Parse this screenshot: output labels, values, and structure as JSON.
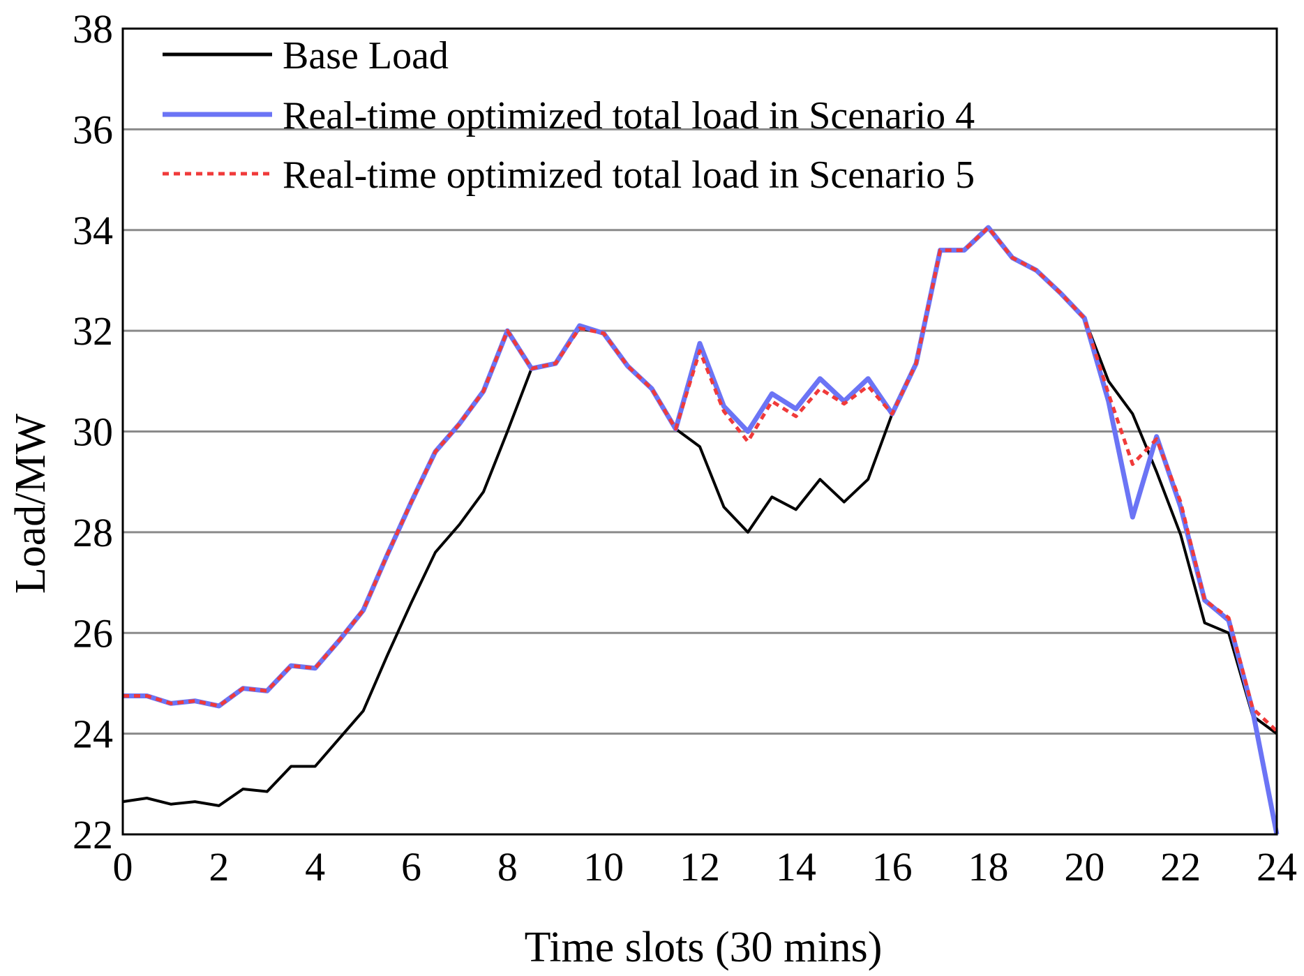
{
  "chart_data": {
    "type": "line",
    "title": "",
    "xlabel": "Time slots (30 mins)",
    "ylabel": "Load/MW",
    "xlim": [
      0,
      24
    ],
    "ylim": [
      22,
      38
    ],
    "xticks": [
      "0",
      "2",
      "4",
      "6",
      "8",
      "10",
      "12",
      "14",
      "16",
      "18",
      "20",
      "22",
      "24"
    ],
    "yticks": [
      "22",
      "24",
      "26",
      "28",
      "30",
      "32",
      "34",
      "36",
      "38"
    ],
    "grid": "horizontal",
    "legend_position": "top-left",
    "x": [
      0,
      0.5,
      1,
      1.5,
      2,
      2.5,
      3,
      3.5,
      4,
      4.5,
      5,
      5.5,
      6,
      6.5,
      7,
      7.5,
      8,
      8.5,
      9,
      9.5,
      10,
      10.5,
      11,
      11.5,
      12,
      12.5,
      13,
      13.5,
      14,
      14.5,
      15,
      15.5,
      16,
      16.5,
      17,
      17.5,
      18,
      18.5,
      19,
      19.5,
      20,
      20.5,
      21,
      21.5,
      22,
      22.5,
      23,
      23.5,
      24
    ],
    "series": [
      {
        "name": "Base Load",
        "color": "#000000",
        "style": "solid",
        "values": [
          22.65,
          22.72,
          22.6,
          22.65,
          22.57,
          22.9,
          22.85,
          23.35,
          23.35,
          23.9,
          24.45,
          25.55,
          26.6,
          27.6,
          28.15,
          28.8,
          30.0,
          31.25,
          31.35,
          32.05,
          31.95,
          31.3,
          30.85,
          30.05,
          29.7,
          28.5,
          28.0,
          28.7,
          28.45,
          29.05,
          28.6,
          29.05,
          30.35,
          31.35,
          33.6,
          33.6,
          34.05,
          33.45,
          33.2,
          32.75,
          32.25,
          31.0,
          30.35,
          29.2,
          27.95,
          26.2,
          26.0,
          24.35,
          24.0
        ]
      },
      {
        "name": "Real-time optimized total load in Scenario 4",
        "color": "#6b74f5",
        "style": "solid",
        "values": [
          24.75,
          24.75,
          24.6,
          24.65,
          24.55,
          24.9,
          24.85,
          25.35,
          25.3,
          25.85,
          26.45,
          27.55,
          28.6,
          29.6,
          30.15,
          30.8,
          32.0,
          31.25,
          31.35,
          32.1,
          31.95,
          31.3,
          30.85,
          30.05,
          31.75,
          30.5,
          30.0,
          30.75,
          30.45,
          31.05,
          30.6,
          31.05,
          30.35,
          31.35,
          33.6,
          33.6,
          34.05,
          33.45,
          33.2,
          32.75,
          32.25,
          30.6,
          28.3,
          29.9,
          28.5,
          26.65,
          26.25,
          24.45,
          22.0
        ]
      },
      {
        "name": "Real-time optimized total load in Scenario 5",
        "color": "#f03a3a",
        "style": "dotted",
        "values": [
          24.75,
          24.75,
          24.6,
          24.65,
          24.55,
          24.9,
          24.85,
          25.35,
          25.3,
          25.85,
          26.45,
          27.55,
          28.6,
          29.6,
          30.15,
          30.8,
          32.0,
          31.25,
          31.35,
          32.05,
          31.95,
          31.3,
          30.85,
          30.05,
          31.6,
          30.4,
          29.8,
          30.6,
          30.3,
          30.85,
          30.55,
          30.9,
          30.35,
          31.35,
          33.6,
          33.6,
          34.05,
          33.45,
          33.2,
          32.75,
          32.25,
          30.75,
          29.35,
          29.85,
          28.6,
          26.65,
          26.3,
          24.5,
          24.05
        ]
      }
    ]
  }
}
